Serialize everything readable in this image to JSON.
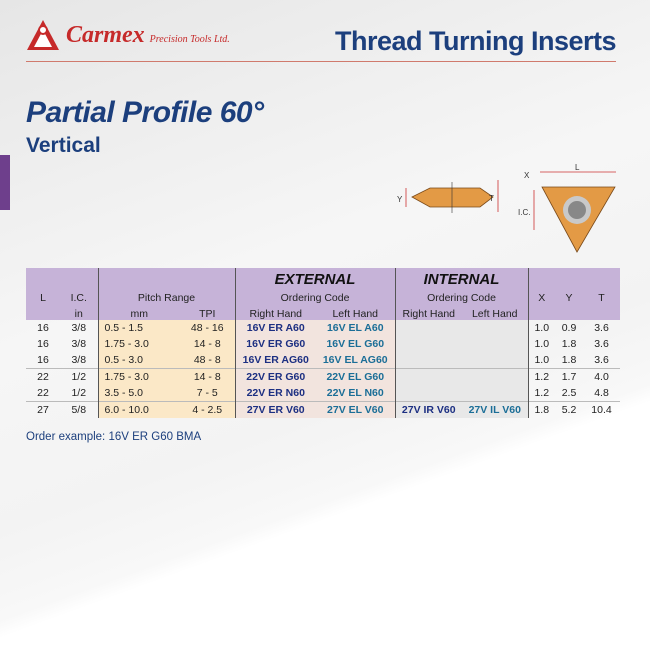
{
  "header": {
    "brand": "Carmex",
    "brand_sub": "Precision Tools Ltd.",
    "title": "Thread Turning Inserts"
  },
  "page": {
    "title": "Partial Profile 60°",
    "subtitle": "Vertical"
  },
  "diagram": {
    "labels": {
      "x": "X",
      "y": "Y",
      "t": "T",
      "l": "L",
      "ic": "I.C."
    }
  },
  "table": {
    "headers": {
      "l": "L",
      "ic": "I.C.",
      "ic_unit": "in",
      "pitch": "Pitch Range",
      "mm": "mm",
      "tpi": "TPI",
      "external": "EXTERNAL",
      "internal": "INTERNAL",
      "ordering_code": "Ordering Code",
      "right_hand": "Right Hand",
      "left_hand": "Left Hand",
      "x": "X",
      "y": "Y",
      "t": "T"
    },
    "rows": [
      {
        "l": "16",
        "ic": "3/8",
        "mm": "0.5  - 1.5",
        "tpi": "48 - 16",
        "ext_rh": "16V ER A60",
        "ext_lh": "16V EL A60",
        "int_rh": "",
        "int_lh": "",
        "x": "1.0",
        "y": "0.9",
        "t": "3.6"
      },
      {
        "l": "16",
        "ic": "3/8",
        "mm": "1.75 - 3.0",
        "tpi": "14  - 8",
        "ext_rh": "16V ER G60",
        "ext_lh": "16V EL G60",
        "int_rh": "",
        "int_lh": "",
        "x": "1.0",
        "y": "1.8",
        "t": "3.6"
      },
      {
        "l": "16",
        "ic": "3/8",
        "mm": "0.5  - 3.0",
        "tpi": "48  - 8",
        "ext_rh": "16V ER AG60",
        "ext_lh": "16V EL AG60",
        "int_rh": "",
        "int_lh": "",
        "x": "1.0",
        "y": "1.8",
        "t": "3.6"
      },
      {
        "l": "22",
        "ic": "1/2",
        "mm": "1.75 - 3.0",
        "tpi": "14  - 8",
        "ext_rh": "22V ER G60",
        "ext_lh": "22V EL G60",
        "int_rh": "",
        "int_lh": "",
        "x": "1.2",
        "y": "1.7",
        "t": "4.0"
      },
      {
        "l": "22",
        "ic": "1/2",
        "mm": "3.5  - 5.0",
        "tpi": "7  - 5",
        "ext_rh": "22V ER N60",
        "ext_lh": "22V EL N60",
        "int_rh": "",
        "int_lh": "",
        "x": "1.2",
        "y": "2.5",
        "t": "4.8"
      },
      {
        "l": "27",
        "ic": "5/8",
        "mm": "6.0  - 10.0",
        "tpi": "4 - 2.5",
        "ext_rh": "27V ER V60",
        "ext_lh": "27V EL V60",
        "int_rh": "27V IR V60",
        "int_lh": "27V IL V60",
        "x": "1.8",
        "y": "5.2",
        "t": "10.4"
      }
    ]
  },
  "order_example": "Order example: 16V ER G60 BMA"
}
